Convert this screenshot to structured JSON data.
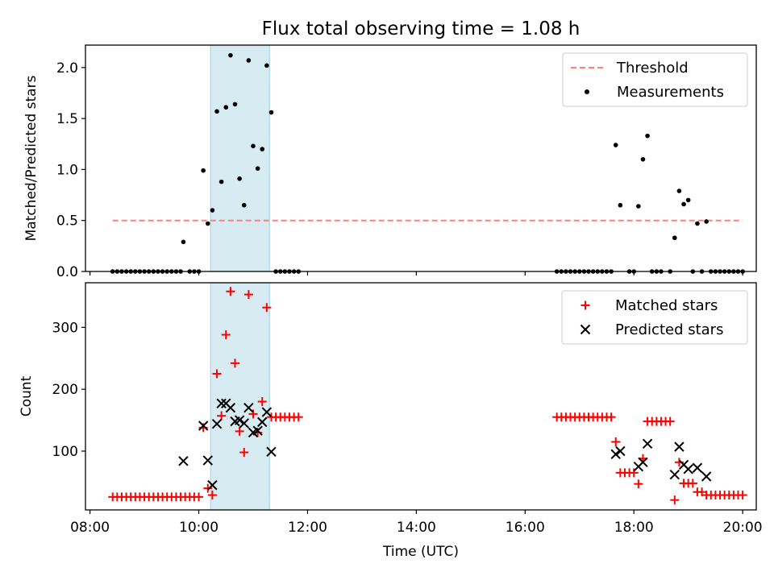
{
  "chart_data": [
    {
      "type": "scatter",
      "title": "Flux total observing time = 1.08 h",
      "ylabel": "Matched/Predicted stars",
      "ylim": [
        0,
        2.22
      ],
      "xlim": [
        "07:55",
        "20:15"
      ],
      "yticks": [
        "0.0",
        "0.5",
        "1.0",
        "1.5",
        "2.0"
      ],
      "legend_position": "top-right",
      "legend": [
        "Threshold",
        "Measurements"
      ],
      "shaded_interval": [
        "10:13",
        "11:18"
      ],
      "threshold": {
        "name": "Threshold",
        "y": 0.5,
        "x_range": [
          "08:25",
          "20:00"
        ],
        "color": "#ff7f7f",
        "style": "dashed"
      },
      "series": [
        {
          "name": "Measurements",
          "color": "#000000",
          "marker": "dot",
          "points": [
            [
              "08:25",
              0
            ],
            [
              "08:30",
              0
            ],
            [
              "08:35",
              0
            ],
            [
              "08:40",
              0
            ],
            [
              "08:45",
              0
            ],
            [
              "08:50",
              0
            ],
            [
              "08:55",
              0
            ],
            [
              "09:00",
              0
            ],
            [
              "09:05",
              0
            ],
            [
              "09:10",
              0
            ],
            [
              "09:15",
              0
            ],
            [
              "09:20",
              0
            ],
            [
              "09:25",
              0
            ],
            [
              "09:30",
              0
            ],
            [
              "09:35",
              0
            ],
            [
              "09:40",
              0
            ],
            [
              "09:43",
              0.29
            ],
            [
              "09:50",
              0
            ],
            [
              "09:55",
              0
            ],
            [
              "10:00",
              0
            ],
            [
              "10:05",
              0.99
            ],
            [
              "10:10",
              0.47
            ],
            [
              "10:15",
              0.6
            ],
            [
              "10:20",
              1.57
            ],
            [
              "10:25",
              0.88
            ],
            [
              "10:30",
              1.61
            ],
            [
              "10:35",
              2.12
            ],
            [
              "10:40",
              1.64
            ],
            [
              "10:45",
              0.91
            ],
            [
              "10:50",
              0.65
            ],
            [
              "10:55",
              2.07
            ],
            [
              "11:00",
              1.23
            ],
            [
              "11:05",
              1.01
            ],
            [
              "11:10",
              1.2
            ],
            [
              "11:15",
              2.02
            ],
            [
              "11:20",
              1.56
            ],
            [
              "11:25",
              0
            ],
            [
              "11:30",
              0
            ],
            [
              "11:35",
              0
            ],
            [
              "11:40",
              0
            ],
            [
              "11:45",
              0
            ],
            [
              "11:50",
              0
            ],
            [
              "16:35",
              0
            ],
            [
              "16:40",
              0
            ],
            [
              "16:45",
              0
            ],
            [
              "16:50",
              0
            ],
            [
              "16:55",
              0
            ],
            [
              "17:00",
              0
            ],
            [
              "17:05",
              0
            ],
            [
              "17:10",
              0
            ],
            [
              "17:15",
              0
            ],
            [
              "17:20",
              0
            ],
            [
              "17:25",
              0
            ],
            [
              "17:30",
              0
            ],
            [
              "17:35",
              0
            ],
            [
              "17:40",
              1.24
            ],
            [
              "17:45",
              0.65
            ],
            [
              "17:55",
              0
            ],
            [
              "18:00",
              0
            ],
            [
              "18:05",
              0.64
            ],
            [
              "18:10",
              1.1
            ],
            [
              "18:15",
              1.33
            ],
            [
              "18:20",
              0
            ],
            [
              "18:25",
              0
            ],
            [
              "18:30",
              0
            ],
            [
              "18:40",
              0
            ],
            [
              "18:45",
              0.33
            ],
            [
              "18:50",
              0.79
            ],
            [
              "18:55",
              0.66
            ],
            [
              "19:00",
              0.7
            ],
            [
              "19:05",
              0
            ],
            [
              "19:10",
              0.47
            ],
            [
              "19:15",
              0
            ],
            [
              "19:20",
              0.49
            ],
            [
              "19:25",
              0
            ],
            [
              "19:30",
              0
            ],
            [
              "19:35",
              0
            ],
            [
              "19:40",
              0
            ],
            [
              "19:45",
              0
            ],
            [
              "19:50",
              0
            ],
            [
              "19:55",
              0
            ],
            [
              "20:00",
              0
            ]
          ]
        }
      ]
    },
    {
      "type": "scatter",
      "xlabel": "Time (UTC)",
      "ylabel": "Count",
      "ylim": [
        5,
        372
      ],
      "xlim": [
        "07:55",
        "20:15"
      ],
      "yticks": [
        "100",
        "200",
        "300"
      ],
      "xticks": [
        "08:00",
        "10:00",
        "12:00",
        "14:00",
        "16:00",
        "18:00",
        "20:00"
      ],
      "legend_position": "top-right",
      "legend": [
        "Matched stars",
        "Predicted stars"
      ],
      "shaded_interval": [
        "10:13",
        "11:18"
      ],
      "series": [
        {
          "name": "Matched stars",
          "color": "#ff0000",
          "marker": "plus",
          "points": [
            [
              "08:25",
              26
            ],
            [
              "08:30",
              26
            ],
            [
              "08:35",
              26
            ],
            [
              "08:40",
              26
            ],
            [
              "08:45",
              26
            ],
            [
              "08:50",
              26
            ],
            [
              "08:55",
              26
            ],
            [
              "09:00",
              26
            ],
            [
              "09:05",
              26
            ],
            [
              "09:10",
              26
            ],
            [
              "09:15",
              26
            ],
            [
              "09:20",
              26
            ],
            [
              "09:25",
              26
            ],
            [
              "09:30",
              26
            ],
            [
              "09:35",
              26
            ],
            [
              "09:40",
              26
            ],
            [
              "09:45",
              26
            ],
            [
              "09:50",
              26
            ],
            [
              "09:55",
              26
            ],
            [
              "10:00",
              26
            ],
            [
              "10:05",
              138
            ],
            [
              "10:10",
              40
            ],
            [
              "10:15",
              29
            ],
            [
              "10:20",
              225
            ],
            [
              "10:25",
              157
            ],
            [
              "10:30",
              288
            ],
            [
              "10:35",
              358
            ],
            [
              "10:40",
              242
            ],
            [
              "10:45",
              132
            ],
            [
              "10:50",
              98
            ],
            [
              "10:55",
              353
            ],
            [
              "11:00",
              160
            ],
            [
              "11:05",
              130
            ],
            [
              "11:10",
              180
            ],
            [
              "11:15",
              332
            ],
            [
              "11:20",
              155
            ],
            [
              "11:25",
              155
            ],
            [
              "11:30",
              155
            ],
            [
              "11:35",
              155
            ],
            [
              "11:40",
              155
            ],
            [
              "11:45",
              155
            ],
            [
              "11:50",
              155
            ],
            [
              "16:35",
              155
            ],
            [
              "16:40",
              155
            ],
            [
              "16:45",
              155
            ],
            [
              "16:50",
              155
            ],
            [
              "16:55",
              155
            ],
            [
              "17:00",
              155
            ],
            [
              "17:05",
              155
            ],
            [
              "17:10",
              155
            ],
            [
              "17:15",
              155
            ],
            [
              "17:20",
              155
            ],
            [
              "17:25",
              155
            ],
            [
              "17:30",
              155
            ],
            [
              "17:35",
              155
            ],
            [
              "17:40",
              115
            ],
            [
              "17:45",
              65
            ],
            [
              "17:50",
              65
            ],
            [
              "17:55",
              65
            ],
            [
              "18:00",
              65
            ],
            [
              "18:05",
              47
            ],
            [
              "18:10",
              88
            ],
            [
              "18:15",
              148
            ],
            [
              "18:20",
              148
            ],
            [
              "18:25",
              148
            ],
            [
              "18:30",
              148
            ],
            [
              "18:35",
              148
            ],
            [
              "18:40",
              148
            ],
            [
              "18:45",
              21
            ],
            [
              "18:50",
              82
            ],
            [
              "18:55",
              48
            ],
            [
              "19:00",
              48
            ],
            [
              "19:05",
              48
            ],
            [
              "19:10",
              34
            ],
            [
              "19:15",
              34
            ],
            [
              "19:20",
              29
            ],
            [
              "19:25",
              29
            ],
            [
              "19:30",
              29
            ],
            [
              "19:35",
              29
            ],
            [
              "19:40",
              29
            ],
            [
              "19:45",
              29
            ],
            [
              "19:50",
              29
            ],
            [
              "19:55",
              29
            ],
            [
              "20:00",
              29
            ]
          ]
        },
        {
          "name": "Predicted stars",
          "color": "#000000",
          "marker": "x",
          "points": [
            [
              "09:43",
              84
            ],
            [
              "10:05",
              141
            ],
            [
              "10:10",
              85
            ],
            [
              "10:15",
              45
            ],
            [
              "10:20",
              144
            ],
            [
              "10:25",
              177
            ],
            [
              "10:30",
              177
            ],
            [
              "10:35",
              170
            ],
            [
              "10:40",
              148
            ],
            [
              "10:45",
              150
            ],
            [
              "10:50",
              145
            ],
            [
              "10:55",
              170
            ],
            [
              "11:00",
              130
            ],
            [
              "11:05",
              133
            ],
            [
              "11:10",
              147
            ],
            [
              "11:15",
              163
            ],
            [
              "11:20",
              99
            ],
            [
              "17:40",
              95
            ],
            [
              "17:45",
              100
            ],
            [
              "18:05",
              75
            ],
            [
              "18:10",
              82
            ],
            [
              "18:15",
              112
            ],
            [
              "18:45",
              62
            ],
            [
              "18:50",
              107
            ],
            [
              "18:55",
              78
            ],
            [
              "19:00",
              71
            ],
            [
              "19:10",
              73
            ],
            [
              "19:20",
              59
            ]
          ]
        }
      ]
    }
  ]
}
